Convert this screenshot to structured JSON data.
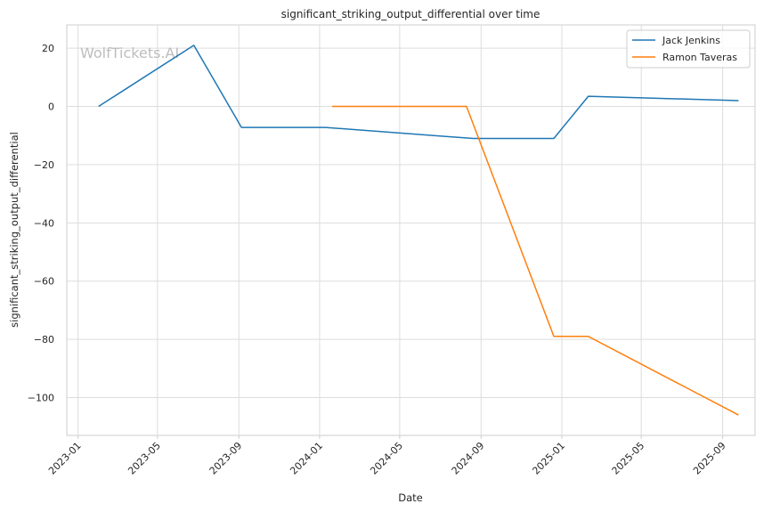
{
  "chart_data": {
    "type": "line",
    "title": "significant_striking_output_differential over time",
    "xlabel": "Date",
    "ylabel": "significant_striking_output_differential",
    "watermark": "WolfTickets.AI",
    "xlim": [
      "2022-12-15",
      "2025-10-20"
    ],
    "ylim": [
      -113,
      28
    ],
    "x_ticks": [
      "2023-01",
      "2023-05",
      "2023-09",
      "2024-01",
      "2024-05",
      "2024-09",
      "2025-01",
      "2025-05",
      "2025-09"
    ],
    "y_ticks": [
      20,
      0,
      -20,
      -40,
      -60,
      -80,
      -100
    ],
    "y_tick_labels": [
      "20",
      "0",
      "−20",
      "−40",
      "−60",
      "−80",
      "−100"
    ],
    "grid": true,
    "legend_position": "top-right",
    "series": [
      {
        "name": "Jack Jenkins",
        "color": "#1f77b4",
        "points": [
          {
            "x": "2023-02-01",
            "y": 0
          },
          {
            "x": "2023-06-25",
            "y": 21
          },
          {
            "x": "2023-09-05",
            "y": -7.2
          },
          {
            "x": "2024-01-10",
            "y": -7.2
          },
          {
            "x": "2024-08-20",
            "y": -11
          },
          {
            "x": "2024-12-20",
            "y": -11
          },
          {
            "x": "2025-02-10",
            "y": 3.5
          },
          {
            "x": "2025-09-25",
            "y": 2
          }
        ]
      },
      {
        "name": "Ramon Taveras",
        "color": "#ff7f0e",
        "points": [
          {
            "x": "2024-01-20",
            "y": 0
          },
          {
            "x": "2024-08-10",
            "y": 0
          },
          {
            "x": "2024-12-20",
            "y": -79
          },
          {
            "x": "2025-02-10",
            "y": -79
          },
          {
            "x": "2025-09-25",
            "y": -106
          }
        ]
      }
    ]
  }
}
